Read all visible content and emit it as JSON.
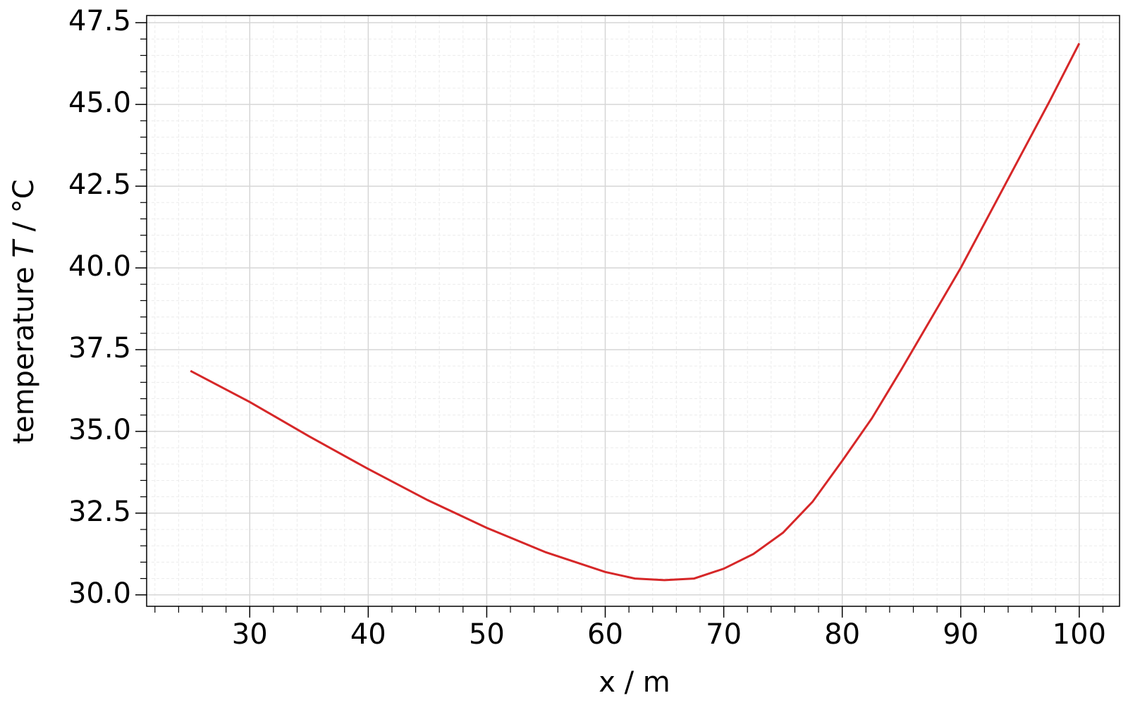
{
  "chart_data": {
    "type": "line",
    "x_label": "x / m",
    "y_label_text": "temperature",
    "y_label_symbol": "T",
    "y_label_unit": "/ °C",
    "x": [
      25,
      30,
      35,
      40,
      45,
      50,
      55,
      60,
      62.5,
      65,
      67.5,
      70,
      72.5,
      75,
      77.5,
      80,
      82.5,
      85,
      87.5,
      90,
      92.5,
      95,
      97.5,
      100
    ],
    "series": [
      {
        "color": "#d62728",
        "values": [
          36.85,
          35.9,
          34.85,
          33.85,
          32.9,
          32.05,
          31.3,
          30.7,
          30.5,
          30.45,
          30.5,
          30.8,
          31.25,
          31.9,
          32.85,
          34.1,
          35.4,
          36.9,
          38.45,
          40.0,
          41.7,
          43.4,
          45.1,
          46.87
        ]
      }
    ],
    "xlim": [
      21.3,
      103.4
    ],
    "ylim": [
      29.65,
      47.72
    ],
    "xticks": [
      30,
      40,
      50,
      60,
      70,
      80,
      90,
      100
    ],
    "yticks": [
      {
        "value": 30,
        "label": "30.0"
      },
      32.5,
      {
        "value": 35,
        "label": "35.0"
      },
      37.5,
      {
        "value": 40,
        "label": "40.0"
      },
      42.5,
      {
        "value": 45,
        "label": "45.0"
      },
      47.5
    ],
    "minor_divisions": 5,
    "grid": true
  }
}
